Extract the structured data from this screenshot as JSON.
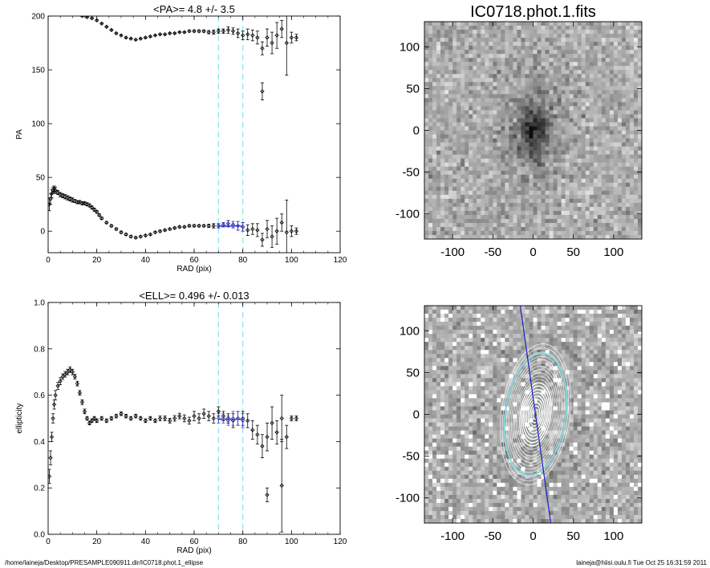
{
  "footer": {
    "left": "/home/laineja/Desktop/PRESAMPLE090911.dir/IC0718.phot.1_ellipse",
    "right": "laineja@hiisi.oulu.fi  Tue Oct 25 16:31:59 2011"
  },
  "colors": {
    "data": "#000000",
    "fit_band": "#8ee8ee",
    "fit_points": "#3a3acc",
    "contour": "#ffffff",
    "fit_ellipse": "#7fd8e0",
    "major_axis": "#1a1acc"
  },
  "chart_data": [
    {
      "type": "scatter",
      "id": "pa-profile",
      "title": "<PA>=   4.8 +/-   3.5",
      "xlabel": "RAD (pix)",
      "ylabel": "PA",
      "xlim": [
        0,
        120
      ],
      "ylim": [
        -20,
        200
      ],
      "xticks": [
        0,
        20,
        40,
        60,
        80,
        100,
        120
      ],
      "yticks": [
        0,
        50,
        100,
        150,
        200
      ],
      "fit_range": [
        70,
        80
      ],
      "fit_mean": 4.8,
      "series": [
        {
          "branch": "upper",
          "x": [
            14,
            16,
            18,
            20,
            22,
            24,
            26,
            28,
            30,
            32,
            34,
            36,
            38,
            40,
            42,
            44,
            46,
            48,
            50,
            52,
            54,
            56,
            58,
            60,
            62,
            64,
            66,
            68,
            70,
            72,
            74,
            76,
            78,
            80,
            82,
            84,
            86,
            88,
            90,
            92,
            94,
            96,
            98,
            100,
            102
          ],
          "y": [
            200,
            199,
            198,
            196,
            193,
            190,
            187,
            184,
            182,
            180,
            179,
            178,
            179,
            180,
            181,
            182,
            183,
            183,
            184,
            184,
            185,
            185,
            186,
            186,
            186,
            186,
            185,
            185,
            186,
            186,
            187,
            186,
            184,
            182,
            183,
            182,
            180,
            170,
            180,
            175,
            182,
            188,
            175,
            180,
            180
          ],
          "err": [
            0.5,
            0.5,
            0.5,
            0.5,
            0.5,
            0.5,
            0.5,
            0.5,
            0.5,
            0.5,
            0.5,
            0.5,
            0.5,
            0.5,
            0.5,
            0.5,
            0.5,
            0.5,
            0.5,
            0.5,
            0.5,
            0.5,
            0.8,
            0.8,
            1,
            1,
            1.5,
            2,
            2,
            2,
            3,
            3,
            4,
            4,
            5,
            5,
            6,
            6,
            8,
            10,
            12,
            8,
            30,
            5,
            3
          ]
        },
        {
          "branch": "lower",
          "x": [
            0.5,
            1,
            1.5,
            2,
            2.5,
            3,
            4,
            5,
            6,
            7,
            8,
            9,
            10,
            11,
            12,
            13,
            14,
            15,
            16,
            17,
            18,
            19,
            20,
            21,
            22,
            24,
            26,
            28,
            30,
            32,
            34,
            36,
            38,
            40,
            42,
            44,
            46,
            48,
            50,
            52,
            54,
            56,
            58,
            60,
            62,
            64,
            66,
            68,
            70,
            72,
            74,
            76,
            78,
            80,
            82,
            84,
            86,
            88,
            90,
            92,
            94,
            96,
            98,
            100,
            102
          ],
          "y": [
            25,
            30,
            35,
            38,
            39,
            38,
            36,
            34,
            33,
            32,
            31,
            30,
            29,
            28,
            27,
            27,
            26,
            26,
            25,
            24,
            22,
            20,
            18,
            15,
            12,
            8,
            5,
            2,
            -1,
            -3,
            -5,
            -6,
            -5,
            -4,
            -3,
            -1,
            0,
            1,
            2,
            3,
            4,
            4,
            5,
            5,
            5,
            5,
            5,
            5,
            5,
            6,
            7,
            6,
            5,
            4,
            1,
            2,
            1,
            -8,
            2,
            -5,
            0,
            8,
            -1,
            0,
            0
          ],
          "err": [
            6,
            5,
            4,
            3,
            3,
            3,
            2,
            2,
            2,
            2,
            2,
            2,
            2,
            1.5,
            1.5,
            1.5,
            1.5,
            1.5,
            1.5,
            1.5,
            1.5,
            1.5,
            1.2,
            1.2,
            1.2,
            1,
            1,
            1,
            1,
            1,
            1,
            0.8,
            0.8,
            0.8,
            0.8,
            0.8,
            0.8,
            0.8,
            0.8,
            0.8,
            0.8,
            0.8,
            1,
            1,
            1,
            1,
            1.5,
            2,
            2,
            2,
            3,
            3,
            4,
            4,
            5,
            5,
            6,
            6,
            8,
            10,
            12,
            8,
            30,
            5,
            3
          ]
        },
        {
          "branch": "outlier",
          "x": [
            88
          ],
          "y": [
            130
          ],
          "err": [
            8
          ]
        },
        {
          "branch": "fit",
          "x": [
            70,
            72,
            74,
            76,
            78,
            80
          ],
          "y": [
            5,
            6,
            7,
            6,
            5,
            4
          ],
          "err": [
            2,
            2,
            3,
            3,
            4,
            4
          ]
        }
      ]
    },
    {
      "type": "scatter",
      "id": "ellipticity-profile",
      "title": "<ELL>= 0.496 +/-  0.013",
      "xlabel": "RAD (pix)",
      "ylabel": "ellipticity",
      "xlim": [
        0,
        120
      ],
      "ylim": [
        0.0,
        1.0
      ],
      "xticks": [
        0,
        20,
        40,
        60,
        80,
        100,
        120
      ],
      "yticks": [
        0.0,
        0.2,
        0.4,
        0.6,
        0.8,
        1.0
      ],
      "fit_range": [
        70,
        80
      ],
      "fit_mean": 0.496,
      "series": [
        {
          "branch": "main",
          "x": [
            0.5,
            1,
            1.5,
            2,
            2.5,
            3,
            4,
            5,
            6,
            7,
            8,
            9,
            10,
            11,
            12,
            13,
            14,
            15,
            16,
            17,
            18,
            19,
            20,
            22,
            24,
            26,
            28,
            30,
            32,
            34,
            36,
            38,
            40,
            42,
            44,
            46,
            48,
            50,
            52,
            54,
            56,
            58,
            60,
            62,
            64,
            66,
            68,
            70,
            72,
            74,
            76,
            78,
            80,
            82,
            84,
            86,
            88,
            90,
            92,
            94,
            96,
            98,
            100,
            102
          ],
          "y": [
            0.25,
            0.33,
            0.42,
            0.5,
            0.56,
            0.6,
            0.64,
            0.66,
            0.68,
            0.69,
            0.7,
            0.71,
            0.7,
            0.68,
            0.65,
            0.61,
            0.57,
            0.53,
            0.5,
            0.48,
            0.49,
            0.5,
            0.49,
            0.5,
            0.49,
            0.5,
            0.51,
            0.52,
            0.51,
            0.5,
            0.51,
            0.5,
            0.49,
            0.5,
            0.49,
            0.5,
            0.5,
            0.49,
            0.5,
            0.51,
            0.5,
            0.49,
            0.51,
            0.5,
            0.52,
            0.51,
            0.5,
            0.53,
            0.51,
            0.5,
            0.49,
            0.5,
            0.5,
            0.49,
            0.45,
            0.43,
            0.38,
            0.42,
            0.48,
            0.44,
            0.5,
            0.42,
            0.5,
            0.5
          ],
          "err": [
            0.03,
            0.03,
            0.02,
            0.02,
            0.02,
            0.02,
            0.015,
            0.015,
            0.012,
            0.012,
            0.012,
            0.012,
            0.012,
            0.01,
            0.01,
            0.01,
            0.01,
            0.01,
            0.008,
            0.008,
            0.008,
            0.008,
            0.008,
            0.008,
            0.008,
            0.008,
            0.008,
            0.008,
            0.008,
            0.008,
            0.008,
            0.008,
            0.008,
            0.008,
            0.008,
            0.01,
            0.01,
            0.01,
            0.012,
            0.012,
            0.015,
            0.015,
            0.02,
            0.02,
            0.02,
            0.02,
            0.02,
            0.02,
            0.02,
            0.02,
            0.03,
            0.03,
            0.03,
            0.03,
            0.04,
            0.04,
            0.05,
            0.06,
            0.07,
            0.05,
            0.1,
            0.05,
            0.01,
            0.01
          ]
        },
        {
          "branch": "outlier",
          "x": [
            90,
            96
          ],
          "y": [
            0.17,
            0.21
          ],
          "err": [
            0.03,
            0.2
          ]
        },
        {
          "branch": "fit",
          "x": [
            70,
            72,
            74,
            76,
            78,
            80
          ],
          "y": [
            0.5,
            0.5,
            0.49,
            0.5,
            0.5,
            0.49
          ],
          "err": [
            0.02,
            0.02,
            0.02,
            0.03,
            0.03,
            0.03
          ]
        }
      ]
    },
    {
      "type": "heatmap",
      "id": "galaxy-image",
      "title": "IC0718.phot.1.fits",
      "xlim": [
        -135,
        135
      ],
      "ylim": [
        -130,
        130
      ],
      "xticks": [
        -100,
        -50,
        0,
        50,
        100
      ],
      "yticks": [
        -100,
        -50,
        0,
        50,
        100
      ],
      "galaxy": {
        "center": [
          0,
          5
        ],
        "pa_deg": 5,
        "ellipticity": 0.5,
        "semi_major": 70
      }
    },
    {
      "type": "heatmap",
      "id": "residual-contours",
      "title": "",
      "xlim": [
        -135,
        135
      ],
      "ylim": [
        -130,
        130
      ],
      "xticks": [
        -100,
        -50,
        0,
        50,
        100
      ],
      "yticks": [
        -100,
        -50,
        0,
        50,
        100
      ],
      "contour_semi_major": [
        6,
        10,
        14,
        18,
        22,
        26,
        30,
        34,
        38,
        42,
        46,
        50,
        54,
        58,
        62,
        66,
        70,
        75,
        80,
        85
      ],
      "fit_ellipse_semi_major": 75,
      "ellipticity": 0.5,
      "pa_deg": 5
    }
  ]
}
